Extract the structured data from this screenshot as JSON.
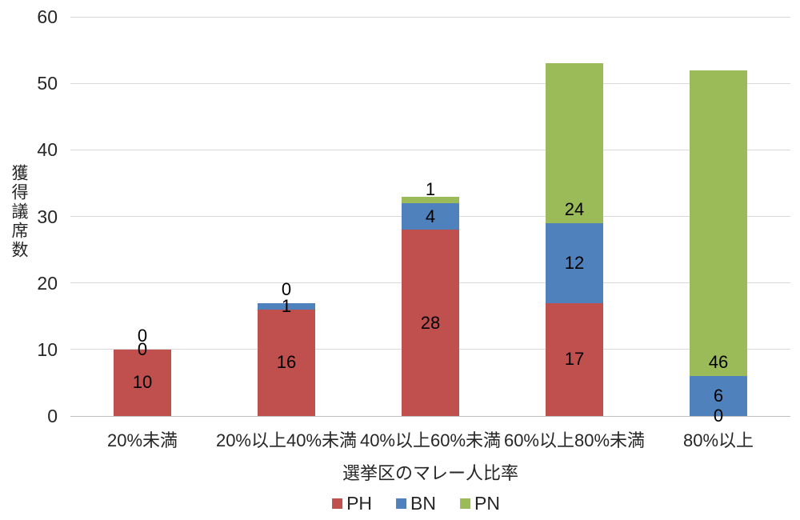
{
  "chart_data": {
    "type": "bar",
    "stacked": true,
    "title": "",
    "categories": [
      "20%未満",
      "20%以上40%未満",
      "40%以上60%未満",
      "60%以上80%未満",
      "80%以上"
    ],
    "series": [
      {
        "name": "PH",
        "color": "#c0504d",
        "label_position": "center",
        "values": [
          10,
          16,
          28,
          17,
          0
        ]
      },
      {
        "name": "BN",
        "color": "#4f81bd",
        "label_position": "center",
        "values": [
          0,
          1,
          4,
          12,
          6
        ]
      },
      {
        "name": "PN",
        "color": "#9bbb59",
        "label_position": "inside_base",
        "values": [
          0,
          0,
          1,
          24,
          46
        ]
      }
    ],
    "totals": [
      10,
      17,
      33,
      53,
      52
    ],
    "xlabel": "選挙区のマレー人比率",
    "ylabel": "獲得議席数",
    "ylim": [
      0,
      60
    ],
    "yticks": [
      0,
      10,
      20,
      30,
      40,
      50,
      60
    ],
    "grid": true,
    "grid_color": "#d9d9d9",
    "axis_line_color": "#bfbfbf",
    "data_label_color": "#000000",
    "axis_text_color": "#262626",
    "legend_position": "bottom",
    "legend_labels": [
      "PH",
      "BN",
      "PN"
    ]
  }
}
